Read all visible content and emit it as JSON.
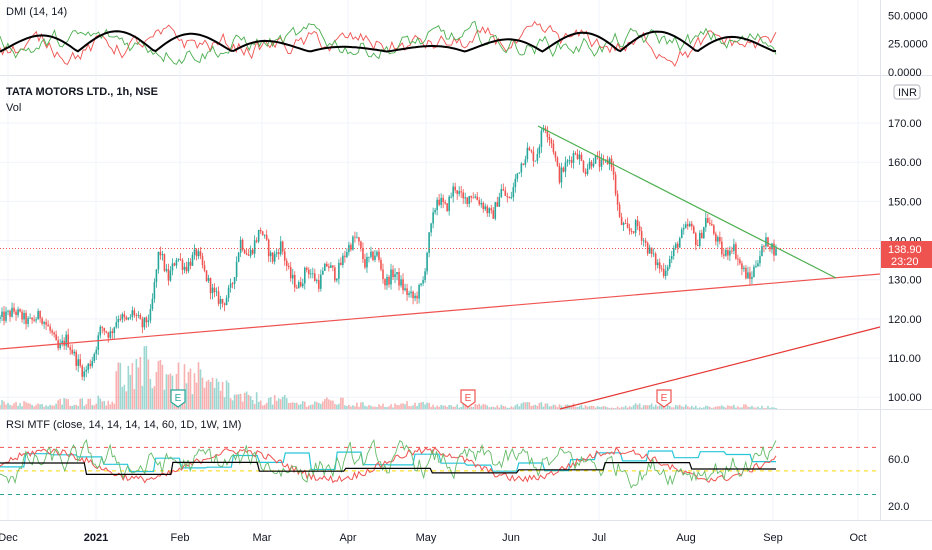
{
  "chart_data": {
    "type": "candlestick",
    "symbol_title": "TATA MOTORS LTD., 1h, NSE",
    "volume_label": "Vol",
    "currency_badge": "INR",
    "last_price": "138.90",
    "countdown": "23:20",
    "price_axis": {
      "ticks": [
        "170.00",
        "160.00",
        "150.00",
        "140.00",
        "130.00",
        "120.00",
        "110.00",
        "100.00"
      ],
      "range": [
        97,
        182
      ]
    },
    "dmi": {
      "title": "DMI (14, 14)",
      "ticks": [
        "50.0000",
        "25.0000",
        "0.0000"
      ],
      "range": [
        0,
        60
      ]
    },
    "rsi": {
      "title": "RSI MTF (close, 14, 14, 14, 14, 60, 1D, 1W, 1M)",
      "ticks": [
        "60.0",
        "20.0"
      ],
      "range": [
        10,
        100
      ],
      "levels": [
        70,
        50,
        30
      ]
    },
    "time_axis": [
      "Dec",
      "2021",
      "Feb",
      "Mar",
      "Apr",
      "May",
      "Jun",
      "Jul",
      "Aug",
      "Sep",
      "Oct"
    ],
    "earnings_marker": "E",
    "price_path": [
      [
        0,
        120
      ],
      [
        0.5,
        122
      ],
      [
        1,
        119
      ],
      [
        1.4,
        121
      ],
      [
        1.8,
        116
      ],
      [
        2.0,
        112
      ],
      [
        2.3,
        115
      ],
      [
        2.6,
        110
      ],
      [
        2.9,
        106
      ],
      [
        3.2,
        110
      ],
      [
        3.5,
        118
      ],
      [
        3.8,
        116
      ],
      [
        4.1,
        121
      ],
      [
        4.4,
        119
      ],
      [
        4.6,
        122
      ],
      [
        4.9,
        118
      ],
      [
        5.2,
        121
      ],
      [
        5.5,
        138
      ],
      [
        5.8,
        130
      ],
      [
        6.1,
        136
      ],
      [
        6.4,
        133
      ],
      [
        6.8,
        137
      ],
      [
        7.1,
        131
      ],
      [
        7.4,
        126
      ],
      [
        7.7,
        124
      ],
      [
        8.0,
        128
      ],
      [
        8.3,
        140
      ],
      [
        8.6,
        136
      ],
      [
        9.0,
        143
      ],
      [
        9.4,
        135
      ],
      [
        9.7,
        139
      ],
      [
        10.0,
        131
      ],
      [
        10.3,
        128
      ],
      [
        10.6,
        133
      ],
      [
        11.0,
        129
      ],
      [
        11.3,
        134
      ],
      [
        11.6,
        131
      ],
      [
        12.0,
        138
      ],
      [
        12.3,
        141
      ],
      [
        12.6,
        134
      ],
      [
        13.0,
        137
      ],
      [
        13.3,
        129
      ],
      [
        13.6,
        132
      ],
      [
        14.0,
        127
      ],
      [
        14.3,
        125
      ],
      [
        14.6,
        129
      ],
      [
        14.8,
        140
      ],
      [
        15.1,
        151
      ],
      [
        15.4,
        148
      ],
      [
        15.7,
        154
      ],
      [
        16.0,
        150
      ],
      [
        16.3,
        152
      ],
      [
        16.7,
        149
      ],
      [
        17.0,
        146
      ],
      [
        17.3,
        153
      ],
      [
        17.6,
        150
      ],
      [
        17.9,
        158
      ],
      [
        18.2,
        163
      ],
      [
        18.5,
        161
      ],
      [
        18.8,
        170
      ],
      [
        19.1,
        164
      ],
      [
        19.3,
        156
      ],
      [
        19.6,
        160
      ],
      [
        19.9,
        163
      ],
      [
        20.2,
        158
      ],
      [
        20.5,
        161
      ],
      [
        20.8,
        159
      ],
      [
        21.1,
        161
      ],
      [
        21.4,
        145
      ],
      [
        21.7,
        142
      ],
      [
        22.0,
        144
      ],
      [
        22.3,
        139
      ],
      [
        22.6,
        135
      ],
      [
        22.9,
        132
      ],
      [
        23.2,
        136
      ],
      [
        23.5,
        141
      ],
      [
        23.8,
        144
      ],
      [
        24.1,
        139
      ],
      [
        24.4,
        146
      ],
      [
        24.7,
        141
      ],
      [
        25.0,
        136
      ],
      [
        25.3,
        139
      ],
      [
        25.6,
        133
      ],
      [
        25.9,
        130
      ],
      [
        26.2,
        136
      ],
      [
        26.5,
        140
      ],
      [
        26.8,
        137
      ]
    ],
    "volume_profile": [
      0.08,
      0.05,
      0.1,
      0.12,
      0.45,
      0.55,
      0.4,
      0.3,
      0.15,
      0.12,
      0.08,
      0.1,
      0.06,
      0.05,
      0.07,
      0.04,
      0.05,
      0.04,
      0.06,
      0.05,
      0.04,
      0.03,
      0.05,
      0.04,
      0.03,
      0.04,
      0.03
    ]
  }
}
